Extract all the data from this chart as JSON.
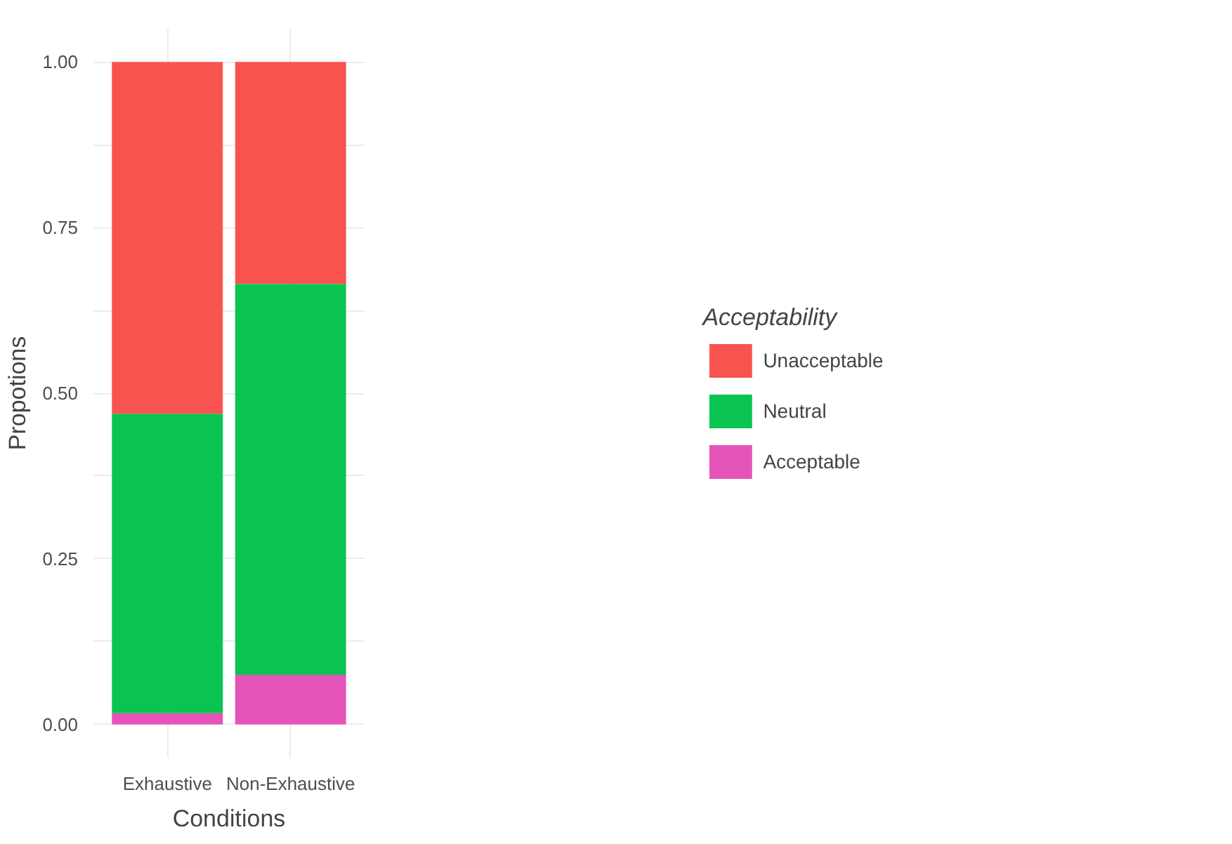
{
  "chart_data": {
    "type": "bar",
    "stacked": true,
    "xlabel": "Conditions",
    "ylabel": "Propotions",
    "legend_title": "Acceptability",
    "legend": "right",
    "grid": true,
    "categories": [
      "Exhaustive",
      "Non-Exhaustive"
    ],
    "series": [
      {
        "name": "Acceptable",
        "color": "#e454b9",
        "values": [
          0.017,
          0.075
        ]
      },
      {
        "name": "Neutral",
        "color": "#0ac451",
        "values": [
          0.452,
          0.59
        ]
      },
      {
        "name": "Unacceptable",
        "color": "#f9534f",
        "values": [
          0.531,
          0.335
        ]
      }
    ],
    "ylim": [
      0,
      1.0
    ],
    "yticks": [
      {
        "value": 0,
        "label": "0.00"
      },
      {
        "value": 0.125,
        "label": null
      },
      {
        "value": 0.25,
        "label": "0.25"
      },
      {
        "value": 0.375,
        "label": null
      },
      {
        "value": 0.5,
        "label": "0.50"
      },
      {
        "value": 0.625,
        "label": null
      },
      {
        "value": 0.75,
        "label": "0.75"
      },
      {
        "value": 0.875,
        "label": null
      },
      {
        "value": 1.0,
        "label": "1.00"
      }
    ]
  }
}
